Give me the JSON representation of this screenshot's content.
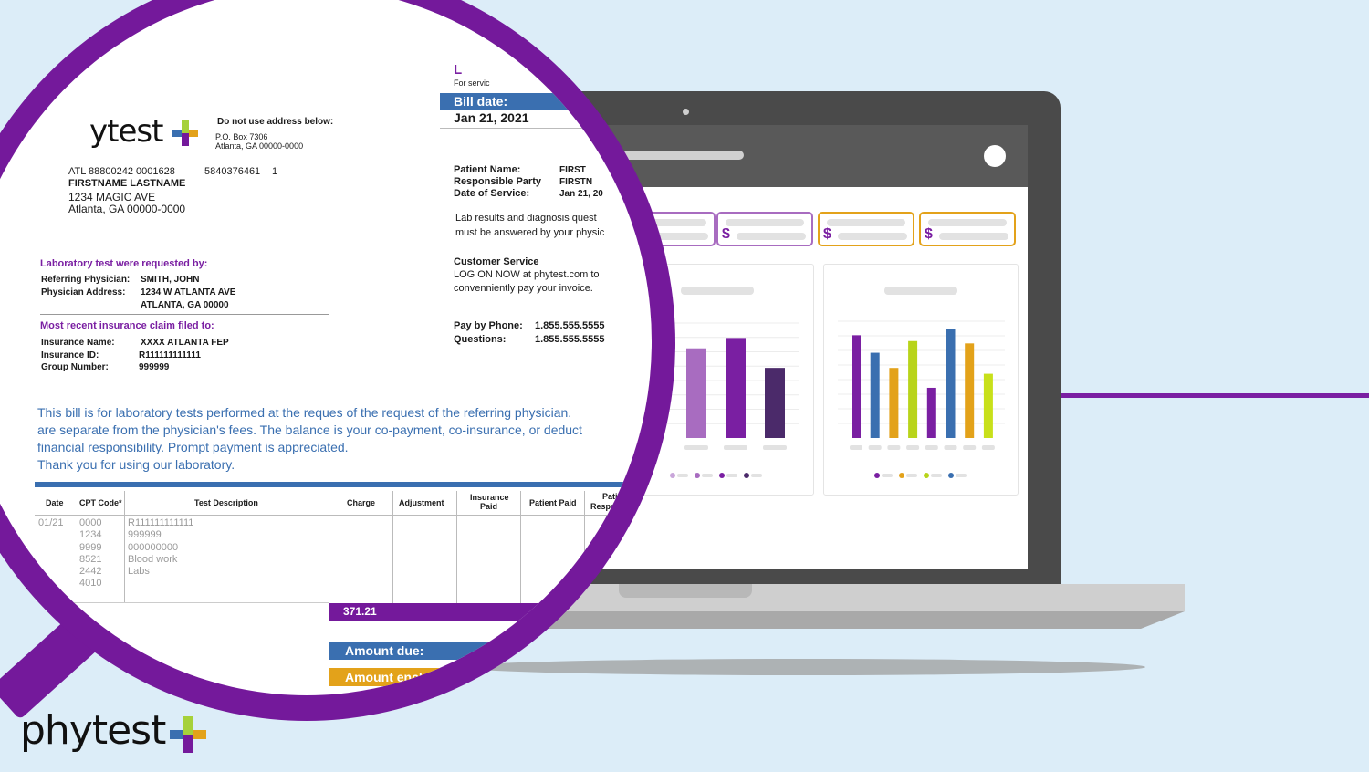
{
  "brand": {
    "logo_text": "phytest",
    "logo_partial_text": "ytest",
    "colors": {
      "purple": "#74199b",
      "blue": "#3a6fb0",
      "green": "#a6d13a",
      "orange": "#e3a21a",
      "background": "#dcedf8"
    }
  },
  "document": {
    "partial_heading": "L",
    "for_service_partial": "For servic",
    "bill_date_label": "Bill date:",
    "bill_date_value": "Jan 21, 2021",
    "address_notice": "Do not use address below:",
    "po_box": "P.O. Box 7306",
    "po_city": "Atlanta, GA 00000-0000",
    "account_line": "ATL 88800242 0001628",
    "account_number": "5840376461",
    "account_count": "1",
    "recipient_name": "FIRSTNAME LASTNAME",
    "recipient_street": "1234 MAGIC AVE",
    "recipient_city": "Atlanta, GA 00000-0000",
    "patient_name_label": "Patient Name:",
    "patient_name_value": "FIRST",
    "responsible_party_label": "Responsible Party",
    "responsible_party_value": "FIRSTN",
    "date_of_service_label": "Date of Service:",
    "date_of_service_value": "Jan 21, 20",
    "lab_results_line1": "Lab results and diagnosis quest",
    "lab_results_line2": "must be answered by your physic",
    "customer_service_label": "Customer Service",
    "customer_service_line1": "LOG ON NOW at phytest.com to",
    "customer_service_line2": "convenniently pay your invoice.",
    "pay_by_phone_label": "Pay by Phone:",
    "pay_by_phone_value": "1.855.555.5555",
    "questions_label": "Questions:",
    "questions_value": "1.855.555.5555",
    "lab_requested_heading": "Laboratory test were requested by:",
    "referring_physician_label": "Referring Physician:",
    "referring_physician_value": "SMITH, JOHN",
    "physician_address_label": "Physician Address:",
    "physician_address_line1": "1234 W ATLANTA AVE",
    "physician_address_line2": "ATLANTA, GA 00000",
    "insurance_heading": "Most recent insurance claim filed to:",
    "insurance_name_label": "Insurance Name:",
    "insurance_name_value": "XXXX ATLANTA FEP",
    "insurance_id_label": "Insurance ID:",
    "insurance_id_value": "R111111111111",
    "group_number_label": "Group Number:",
    "group_number_value": "999999",
    "message_line1": "This bill is for laboratory tests performed at the reques of the request of the referring physician.",
    "message_line2": "are separate from the physician's fees. The balance is your co-payment, co-insurance, or deduct",
    "message_line3": "financial responsibility. Prompt payment is appreciated.",
    "message_line4": "Thank you for using our laboratory.",
    "table_headers": {
      "date": "Date",
      "cpt": "CPT Code*",
      "description": "Test Description",
      "charge": "Charge",
      "adjustment": "Adjustment",
      "insurance_paid_1": "Insurance",
      "insurance_paid_2": "Paid",
      "patient_paid": "Patient Paid",
      "patient_resp_1": "Patie",
      "patient_resp_2": "Respon"
    },
    "table_date": "01/21",
    "cpt_codes": [
      "0000",
      "1234",
      "9999",
      "8521",
      "2442",
      "4010"
    ],
    "descriptions": [
      "R111111111111",
      "999999",
      "000000000",
      "Blood work",
      "Labs"
    ],
    "total_charge": "371.21",
    "amount_due_label": "Amount due:",
    "amount_enclosed_label": "Amount encl"
  },
  "dashboard": {
    "left_bar_chart": {
      "bar_colors": [
        "#a86cc0",
        "#7a1fa2",
        "#4b2a6a"
      ],
      "bar_relative_heights": [
        0.78,
        0.87,
        0.61
      ],
      "legend_colors": [
        "#c9a6da",
        "#a86cc0",
        "#7a1fa2",
        "#4b2a6a"
      ]
    },
    "right_bar_chart": {
      "bar_colors": [
        "#7a1fa2",
        "#3a6fb0",
        "#e3a21a",
        "#b8d41a",
        "#7a1fa2",
        "#3a6fb0",
        "#e3a21a",
        "#c8e01a"
      ],
      "bar_relative_heights": [
        0.88,
        0.73,
        0.6,
        0.83,
        0.43,
        0.93,
        0.81,
        0.55
      ],
      "legend_colors": [
        "#7a1fa2",
        "#e3a21a",
        "#b8d41a",
        "#3a6fb0"
      ]
    },
    "kpi_cards": [
      {
        "border": "#a86cc0",
        "dollar": ""
      },
      {
        "border": "#a86cc0",
        "dollar": "$"
      },
      {
        "border": "#e3a21a",
        "dollar": "$"
      },
      {
        "border": "#e3a21a",
        "dollar": "$"
      }
    ]
  }
}
